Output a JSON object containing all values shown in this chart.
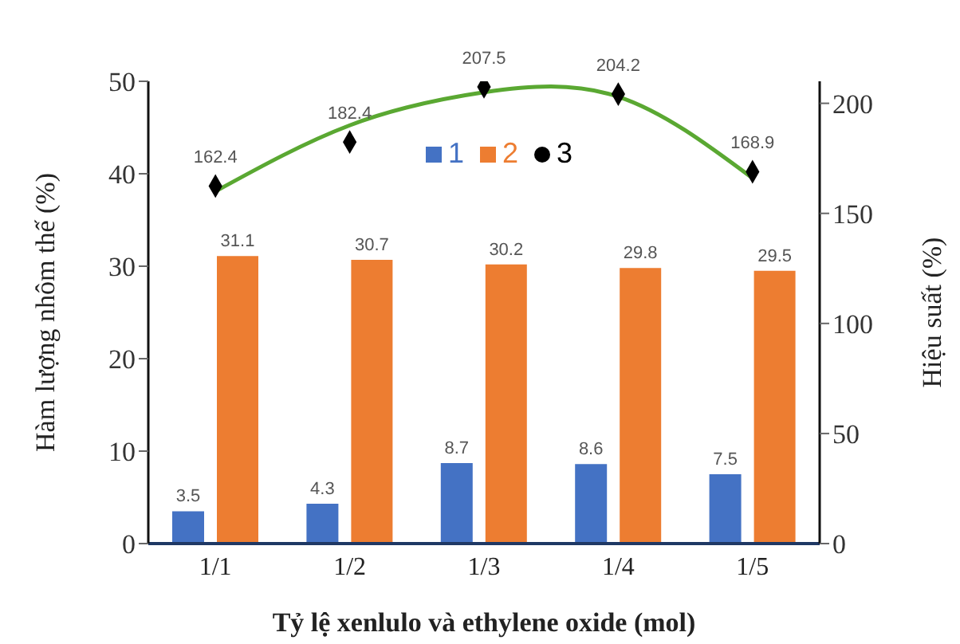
{
  "chart_data": {
    "type": "bar",
    "categories": [
      "1/1",
      "1/2",
      "1/3",
      "1/4",
      "1/5"
    ],
    "xlabel": "Tỷ lệ xenlulo  và ethylene oxide  (mol)",
    "ylabel": "Hàm lượng nhôm thế (%)",
    "y2label": "Hiệu suất (%)",
    "series": [
      {
        "name": "1",
        "color": "#4472c4",
        "values": [
          3.5,
          4.3,
          8.7,
          8.6,
          7.5
        ],
        "value_labels": [
          "3.5",
          "4.3",
          "8.7",
          "8.6",
          "7.5"
        ]
      },
      {
        "name": "2",
        "color": "#ed7d31",
        "values": [
          31.1,
          30.7,
          30.2,
          29.8,
          29.5
        ],
        "value_labels": [
          "31.1",
          "30.7",
          "30.2",
          "29.8",
          "29.5"
        ]
      },
      {
        "name": "3",
        "type": "scatter",
        "axis": "y2",
        "color": "#000000",
        "marker": "diamond",
        "values": [
          162.4,
          182.4,
          207.5,
          204.2,
          168.9
        ],
        "value_labels": [
          "162.4",
          "182.4",
          "207.5",
          "204.2",
          "168.9"
        ]
      },
      {
        "type": "line",
        "axis": "y2",
        "color": "#5aa832",
        "values": [
          160,
          190,
          205,
          203,
          166
        ]
      }
    ],
    "ylim": [
      0,
      50
    ],
    "yticks": [
      0,
      10,
      20,
      30,
      40,
      50
    ],
    "y2lim": [
      0,
      210
    ],
    "y2ticks": [
      0,
      50,
      100,
      150,
      200
    ],
    "legend": "top",
    "grid": false
  }
}
